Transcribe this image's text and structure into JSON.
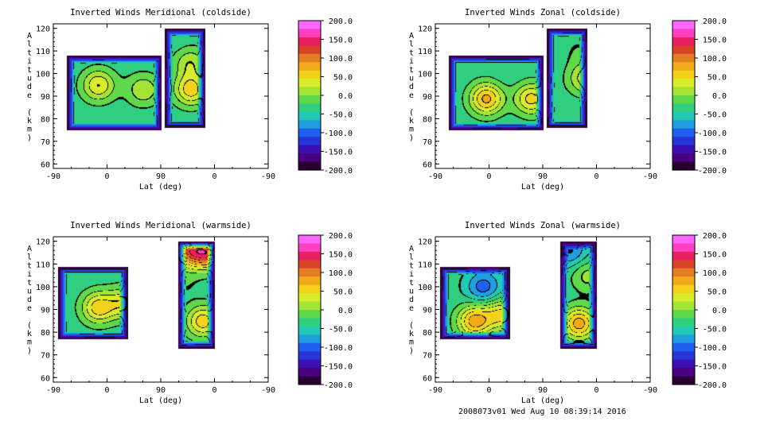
{
  "footer_text": "2008073v01 Wed Aug 10 08:39:14 2016",
  "colorbar": {
    "labels": [
      "200.0",
      "150.0",
      "100.0",
      "50.0",
      "0.0",
      "-50.0",
      "-100.0",
      "-150.0",
      "-200.0"
    ],
    "values": [
      200,
      150,
      100,
      50,
      0,
      -50,
      -100,
      -150,
      -200
    ],
    "colors": [
      "#ff66ff",
      "#ff3fbf",
      "#e8205f",
      "#d9432a",
      "#e27d22",
      "#f3a91a",
      "#f3d21a",
      "#d9ec2a",
      "#a5e335",
      "#5fd84a",
      "#2fcf7f",
      "#1fc9b4",
      "#1f9fe0",
      "#2060f0",
      "#2636d9",
      "#3a10b3",
      "#4a0080",
      "#2a0030"
    ]
  },
  "chart_data": [
    {
      "type": "heatmap",
      "title": "Inverted Winds Meridional (coldside)",
      "xlabel": "Lat (deg)",
      "ylabel": "Altitude (km)",
      "x_ticks": [
        "-90",
        "0",
        "90",
        "0",
        "-90"
      ],
      "y_ticks": [
        120,
        110,
        100,
        90,
        80,
        70,
        60
      ],
      "ylim": [
        58,
        122
      ],
      "value_range": [
        -200,
        200
      ],
      "data_regions": [
        {
          "x_from": -68,
          "x_to": 91,
          "alt_from": 75,
          "alt_to": 108
        },
        {
          "x_from": 96,
          "x_to": 164,
          "alt_from": 76,
          "alt_to": 120
        }
      ],
      "peaks": [
        {
          "x": -15,
          "alt": 95,
          "value": 45
        },
        {
          "x": 60,
          "alt": 93,
          "value": 20
        },
        {
          "x": 140,
          "alt": 93,
          "value": 60
        },
        {
          "x": 138,
          "alt": 105,
          "value": 20
        },
        {
          "x": 116,
          "alt": 113,
          "value": -40
        }
      ]
    },
    {
      "type": "heatmap",
      "title": "Inverted Winds Zonal (coldside)",
      "xlabel": "Lat (deg)",
      "ylabel": "Altitude (km)",
      "x_ticks": [
        "-90",
        "0",
        "90",
        "0",
        "-90"
      ],
      "y_ticks": [
        120,
        110,
        100,
        90,
        80,
        70,
        60
      ],
      "ylim": [
        58,
        122
      ],
      "value_range": [
        -200,
        200
      ],
      "data_regions": [
        {
          "x_from": -68,
          "x_to": 91,
          "alt_from": 75,
          "alt_to": 108
        },
        {
          "x_from": 96,
          "x_to": 164,
          "alt_from": 76,
          "alt_to": 120
        }
      ],
      "peaks": [
        {
          "x": -5,
          "alt": 89,
          "value": 75
        },
        {
          "x": 70,
          "alt": 89,
          "value": 55
        },
        {
          "x": 160,
          "alt": 98,
          "value": 35
        },
        {
          "x": 150,
          "alt": 110,
          "value": -20
        },
        {
          "x": 30,
          "alt": 100,
          "value": -40
        }
      ]
    },
    {
      "type": "heatmap",
      "title": "Inverted Winds Meridional (warmside)",
      "xlabel": "Lat (deg)",
      "ylabel": "Altitude (km)",
      "x_ticks": [
        "-90",
        "0",
        "90",
        "0",
        "-90"
      ],
      "y_ticks": [
        120,
        110,
        100,
        90,
        80,
        70,
        60
      ],
      "ylim": [
        58,
        122
      ],
      "value_range": [
        -200,
        200
      ],
      "data_regions": [
        {
          "x_from": -82,
          "x_to": 34,
          "alt_from": 77,
          "alt_to": 109
        },
        {
          "x_from": 118,
          "x_to": 180,
          "alt_from": 73,
          "alt_to": 120
        }
      ],
      "peaks": [
        {
          "x": -15,
          "alt": 91,
          "value": 60
        },
        {
          "x": 30,
          "alt": 93,
          "value": 40
        },
        {
          "x": 140,
          "alt": 116,
          "value": 110
        },
        {
          "x": 160,
          "alt": 85,
          "value": 60
        },
        {
          "x": 175,
          "alt": 115,
          "value": 110
        },
        {
          "x": 128,
          "alt": 102,
          "value": -20
        }
      ]
    },
    {
      "type": "heatmap",
      "title": "Inverted Winds Zonal (warmside)",
      "xlabel": "Lat (deg)",
      "ylabel": "Altitude (km)",
      "x_ticks": [
        "-90",
        "0",
        "90",
        "0",
        "-90"
      ],
      "y_ticks": [
        120,
        110,
        100,
        90,
        80,
        70,
        60
      ],
      "ylim": [
        58,
        122
      ],
      "value_range": [
        -200,
        200
      ],
      "data_regions": [
        {
          "x_from": -82,
          "x_to": 34,
          "alt_from": 77,
          "alt_to": 109
        },
        {
          "x_from": 118,
          "x_to": 180,
          "alt_from": 73,
          "alt_to": 120
        }
      ],
      "peaks": [
        {
          "x": -25,
          "alt": 85,
          "value": 80
        },
        {
          "x": 20,
          "alt": 88,
          "value": 50
        },
        {
          "x": 150,
          "alt": 84,
          "value": 80
        },
        {
          "x": 135,
          "alt": 116,
          "value": -90
        },
        {
          "x": 165,
          "alt": 105,
          "value": 10
        },
        {
          "x": -10,
          "alt": 100,
          "value": -100
        }
      ]
    }
  ]
}
